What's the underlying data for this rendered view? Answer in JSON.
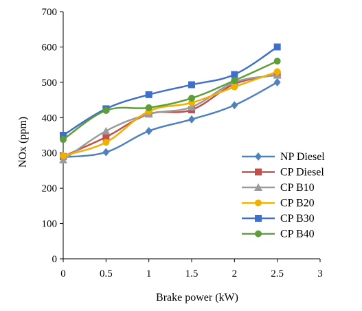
{
  "chart_data": {
    "type": "line",
    "title": "",
    "xlabel": "Brake power  (kW)",
    "ylabel": "NOx (ppm)",
    "xlim": [
      0,
      3
    ],
    "ylim": [
      0,
      700
    ],
    "xticks": [
      "0",
      "0.5",
      "1",
      "1.5",
      "2",
      "2.5",
      "3"
    ],
    "yticks": [
      "0",
      "100",
      "200",
      "300",
      "400",
      "500",
      "600",
      "700"
    ],
    "grid": false,
    "legend_position": "right",
    "x": [
      0,
      0.5,
      1,
      1.5,
      2,
      2.5
    ],
    "series": [
      {
        "name": "NP Diesel",
        "color": "#4F81BD",
        "marker": "diamond",
        "values": [
          288,
          302,
          362,
          395,
          435,
          500
        ]
      },
      {
        "name": "CP Diesel",
        "color": "#C0504D",
        "marker": "square",
        "values": [
          290,
          345,
          410,
          422,
          495,
          522
        ]
      },
      {
        "name": "CP B10",
        "color": "#9B9B9B",
        "marker": "triangle",
        "values": [
          280,
          362,
          410,
          430,
          500,
          520
        ]
      },
      {
        "name": "CP B20",
        "color": "#F0B000",
        "marker": "circle",
        "values": [
          292,
          330,
          418,
          442,
          487,
          530
        ]
      },
      {
        "name": "CP B30",
        "color": "#3F6FC8",
        "marker": "square",
        "values": [
          350,
          425,
          465,
          493,
          522,
          600
        ]
      },
      {
        "name": "CP B40",
        "color": "#5E9E3A",
        "marker": "circle",
        "values": [
          338,
          420,
          428,
          455,
          505,
          560
        ]
      }
    ]
  }
}
